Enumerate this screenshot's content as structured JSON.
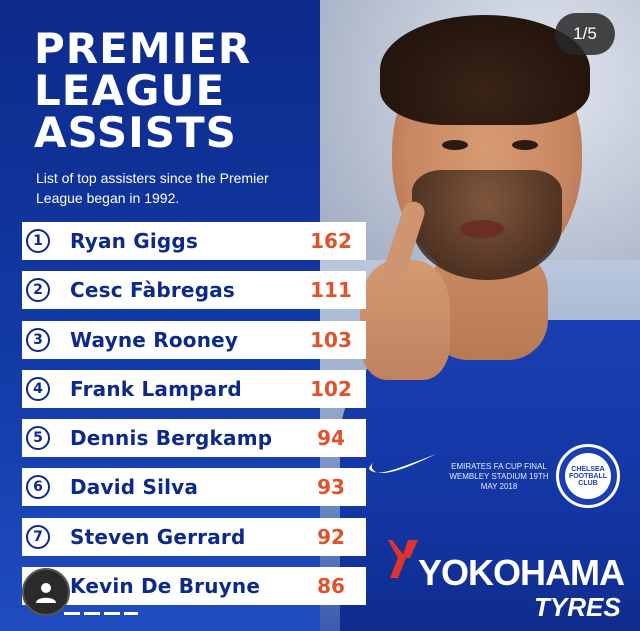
{
  "title_lines": [
    "PREMIER",
    "LEAGUE",
    "ASSISTS"
  ],
  "subtitle": "List of top assisters since the Premier League began in 1992.",
  "counter": "1/5",
  "players": [
    {
      "rank": "1",
      "name": "Ryan Giggs",
      "assists": "162"
    },
    {
      "rank": "2",
      "name": "Cesc Fàbregas",
      "assists": "111"
    },
    {
      "rank": "3",
      "name": "Wayne Rooney",
      "assists": "103"
    },
    {
      "rank": "4",
      "name": "Frank Lampard",
      "assists": "102"
    },
    {
      "rank": "5",
      "name": "Dennis Bergkamp",
      "assists": "94"
    },
    {
      "rank": "6",
      "name": "David Silva",
      "assists": "93"
    },
    {
      "rank": "7",
      "name": "Steven Gerrard",
      "assists": "92"
    },
    {
      "rank": "",
      "name": "Kevin De Bruyne",
      "assists": "86"
    }
  ],
  "jersey": {
    "cup_text": "EMIRATES FA CUP FINAL WEMBLEY STADIUM 19TH MAY 2018",
    "crest_text": "CHELSEA FOOTBALL CLUB",
    "sponsor": "YOKOHAMA",
    "sponsor_sub": "TYRES"
  },
  "icons": {
    "avatar": "user-avatar-icon",
    "swoosh": "nike-swoosh-icon",
    "crest": "chelsea-crest-icon"
  },
  "colors": {
    "panel_blue": "#0d2a8a",
    "value_orange": "#e0532a",
    "row_white": "#ffffff"
  }
}
